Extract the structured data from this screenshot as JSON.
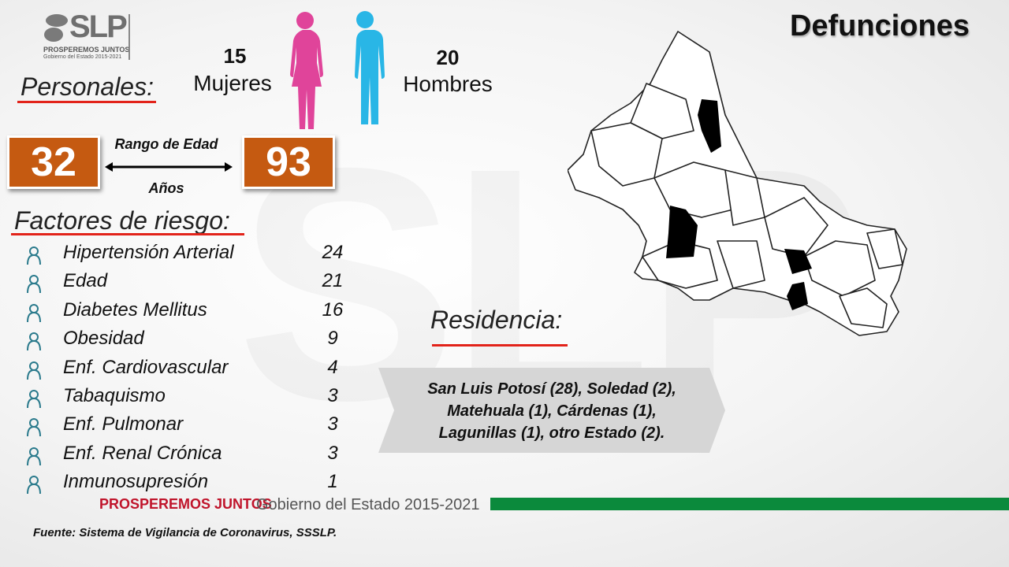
{
  "logo": {
    "mark": "SLP",
    "slogan": "PROSPEREMOS JUNTOS",
    "government": "Gobierno del Estado 2015-2021"
  },
  "title": "Defunciones",
  "personales": {
    "heading": "Personales:",
    "women": {
      "count": "15",
      "label": "Mujeres"
    },
    "men": {
      "count": "20",
      "label": "Hombres"
    },
    "age_range": {
      "min": "32",
      "max": "93",
      "label": "Rango de Edad",
      "unit": "Años"
    }
  },
  "risk_factors": {
    "heading": "Factores de riesgo:",
    "rows": [
      [
        "Hipertensión Arterial",
        "24"
      ],
      [
        "Edad",
        "21"
      ],
      [
        "Diabetes Mellitus",
        "16"
      ],
      [
        "Obesidad",
        "9"
      ],
      [
        "Enf. Cardiovascular",
        "4"
      ],
      [
        "Tabaquismo",
        "3"
      ],
      [
        "Enf. Pulmonar",
        "3"
      ],
      [
        "Enf. Renal Crónica",
        "3"
      ],
      [
        "Inmunosupresión",
        "1"
      ]
    ]
  },
  "residence": {
    "heading": "Residencia:",
    "lines": [
      "San Luis Potosí (28), Soledad (2),",
      "Matehuala (1), Cárdenas (1),",
      "Lagunillas (1), otro Estado (2)."
    ]
  },
  "footer": {
    "slogan": "PROSPEREMOS JUNTOS",
    "government": "Gobierno del Estado 2015-2021",
    "source": "Fuente: Sistema de Vigilancia de Coronavirus, SSSLP."
  }
}
